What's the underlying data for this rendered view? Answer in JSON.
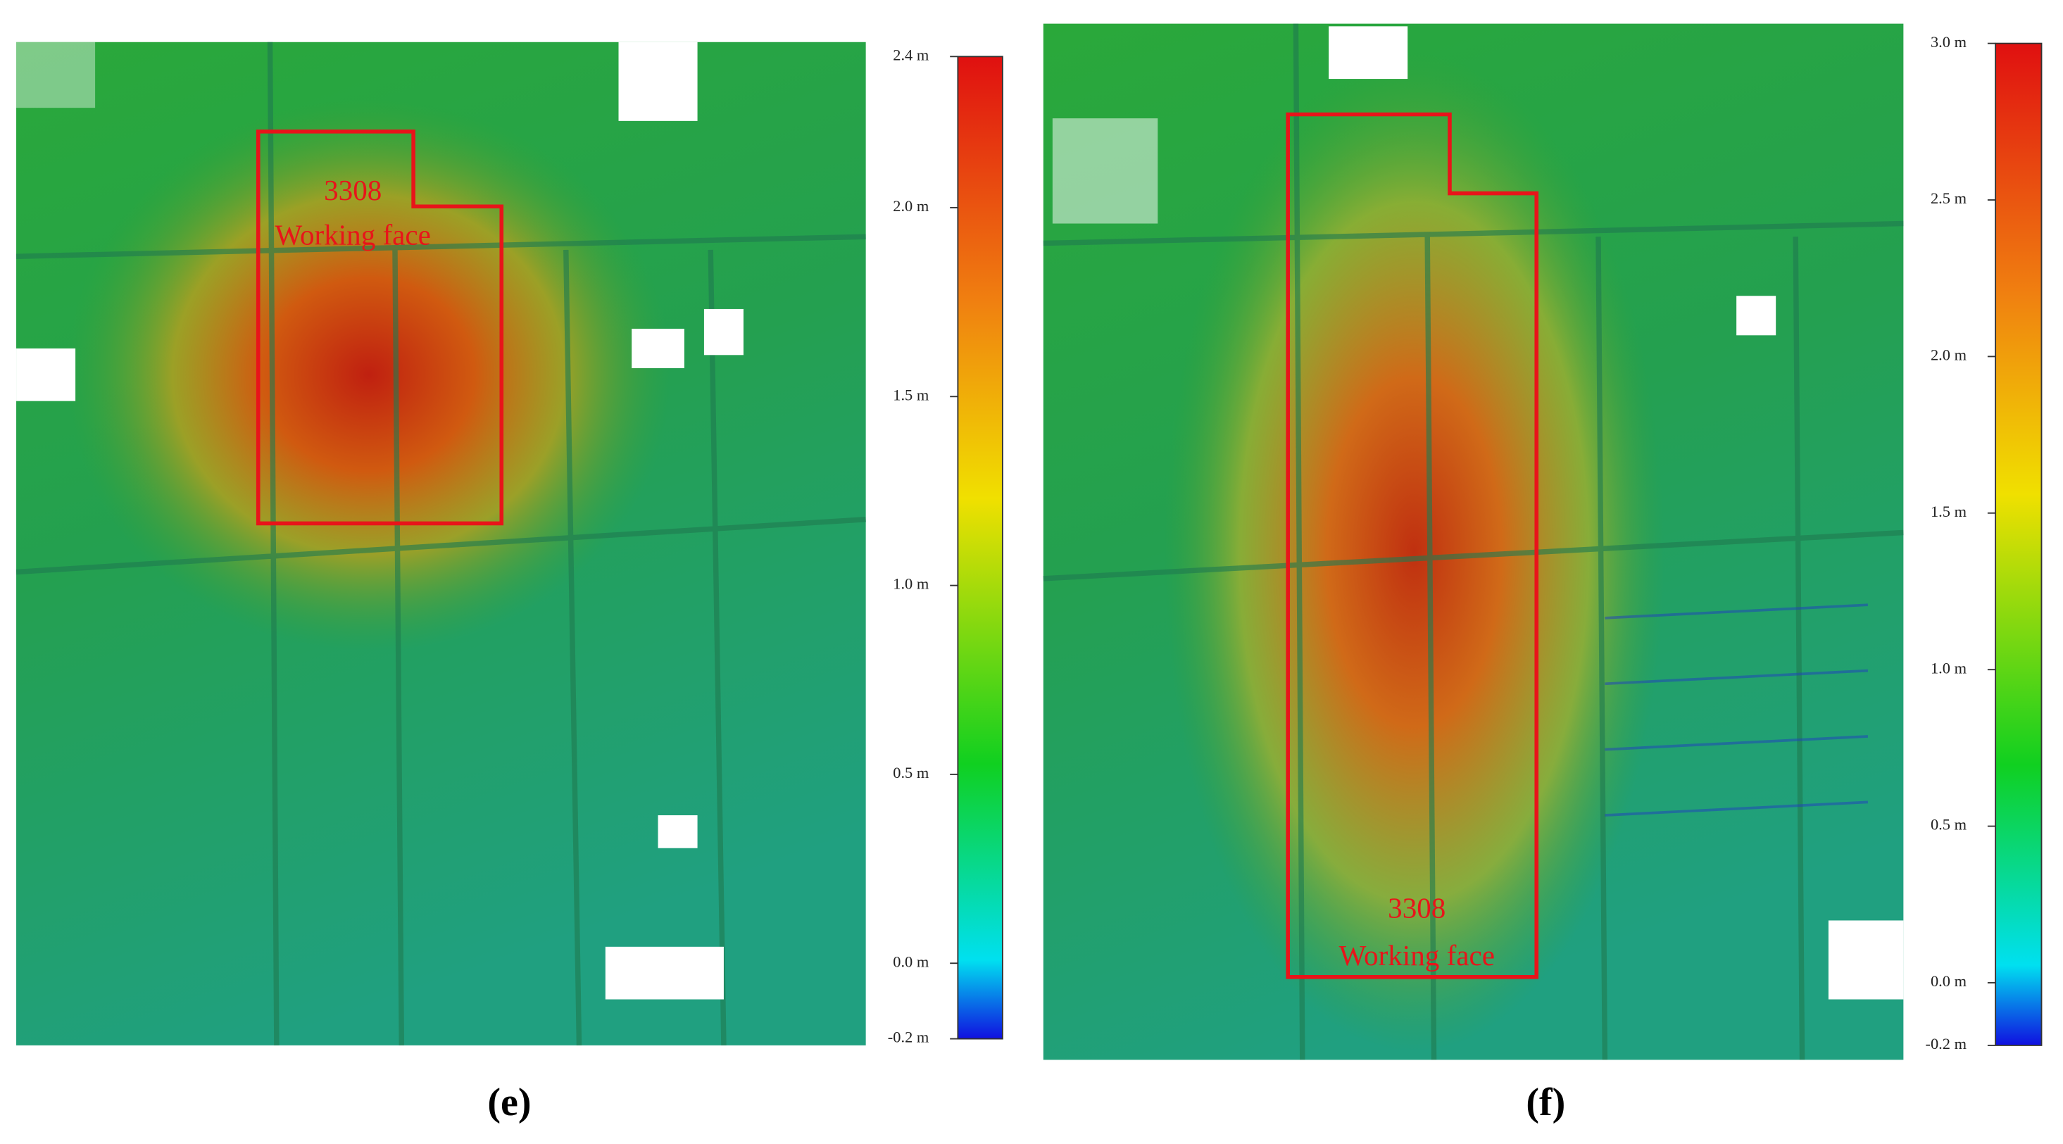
{
  "panels": [
    {
      "label": "(e)",
      "annotation": [
        "3308",
        "Working face"
      ],
      "colorbar": {
        "lim": [
          -0.2,
          2.4
        ],
        "ticks": [
          {
            "value": 2.4,
            "label": "2.4 m"
          },
          {
            "value": 2.0,
            "label": "2.0 m"
          },
          {
            "value": 1.5,
            "label": "1.5 m"
          },
          {
            "value": 1.0,
            "label": "1.0 m"
          },
          {
            "value": 0.5,
            "label": "0.5 m"
          },
          {
            "value": 0.0,
            "label": "0.0 m"
          },
          {
            "value": -0.2,
            "label": "-0.2 m"
          }
        ]
      }
    },
    {
      "label": "(f)",
      "annotation": [
        "3308",
        "Working face"
      ],
      "colorbar": {
        "lim": [
          -0.2,
          3.0
        ],
        "ticks": [
          {
            "value": 3.0,
            "label": "3.0 m"
          },
          {
            "value": 2.5,
            "label": "2.5 m"
          },
          {
            "value": 2.0,
            "label": "2.0 m"
          },
          {
            "value": 1.5,
            "label": "1.5 m"
          },
          {
            "value": 1.0,
            "label": "1.0 m"
          },
          {
            "value": 0.5,
            "label": "0.5 m"
          },
          {
            "value": 0.0,
            "label": "0.0 m"
          },
          {
            "value": -0.2,
            "label": "-0.2 m"
          }
        ]
      }
    }
  ]
}
